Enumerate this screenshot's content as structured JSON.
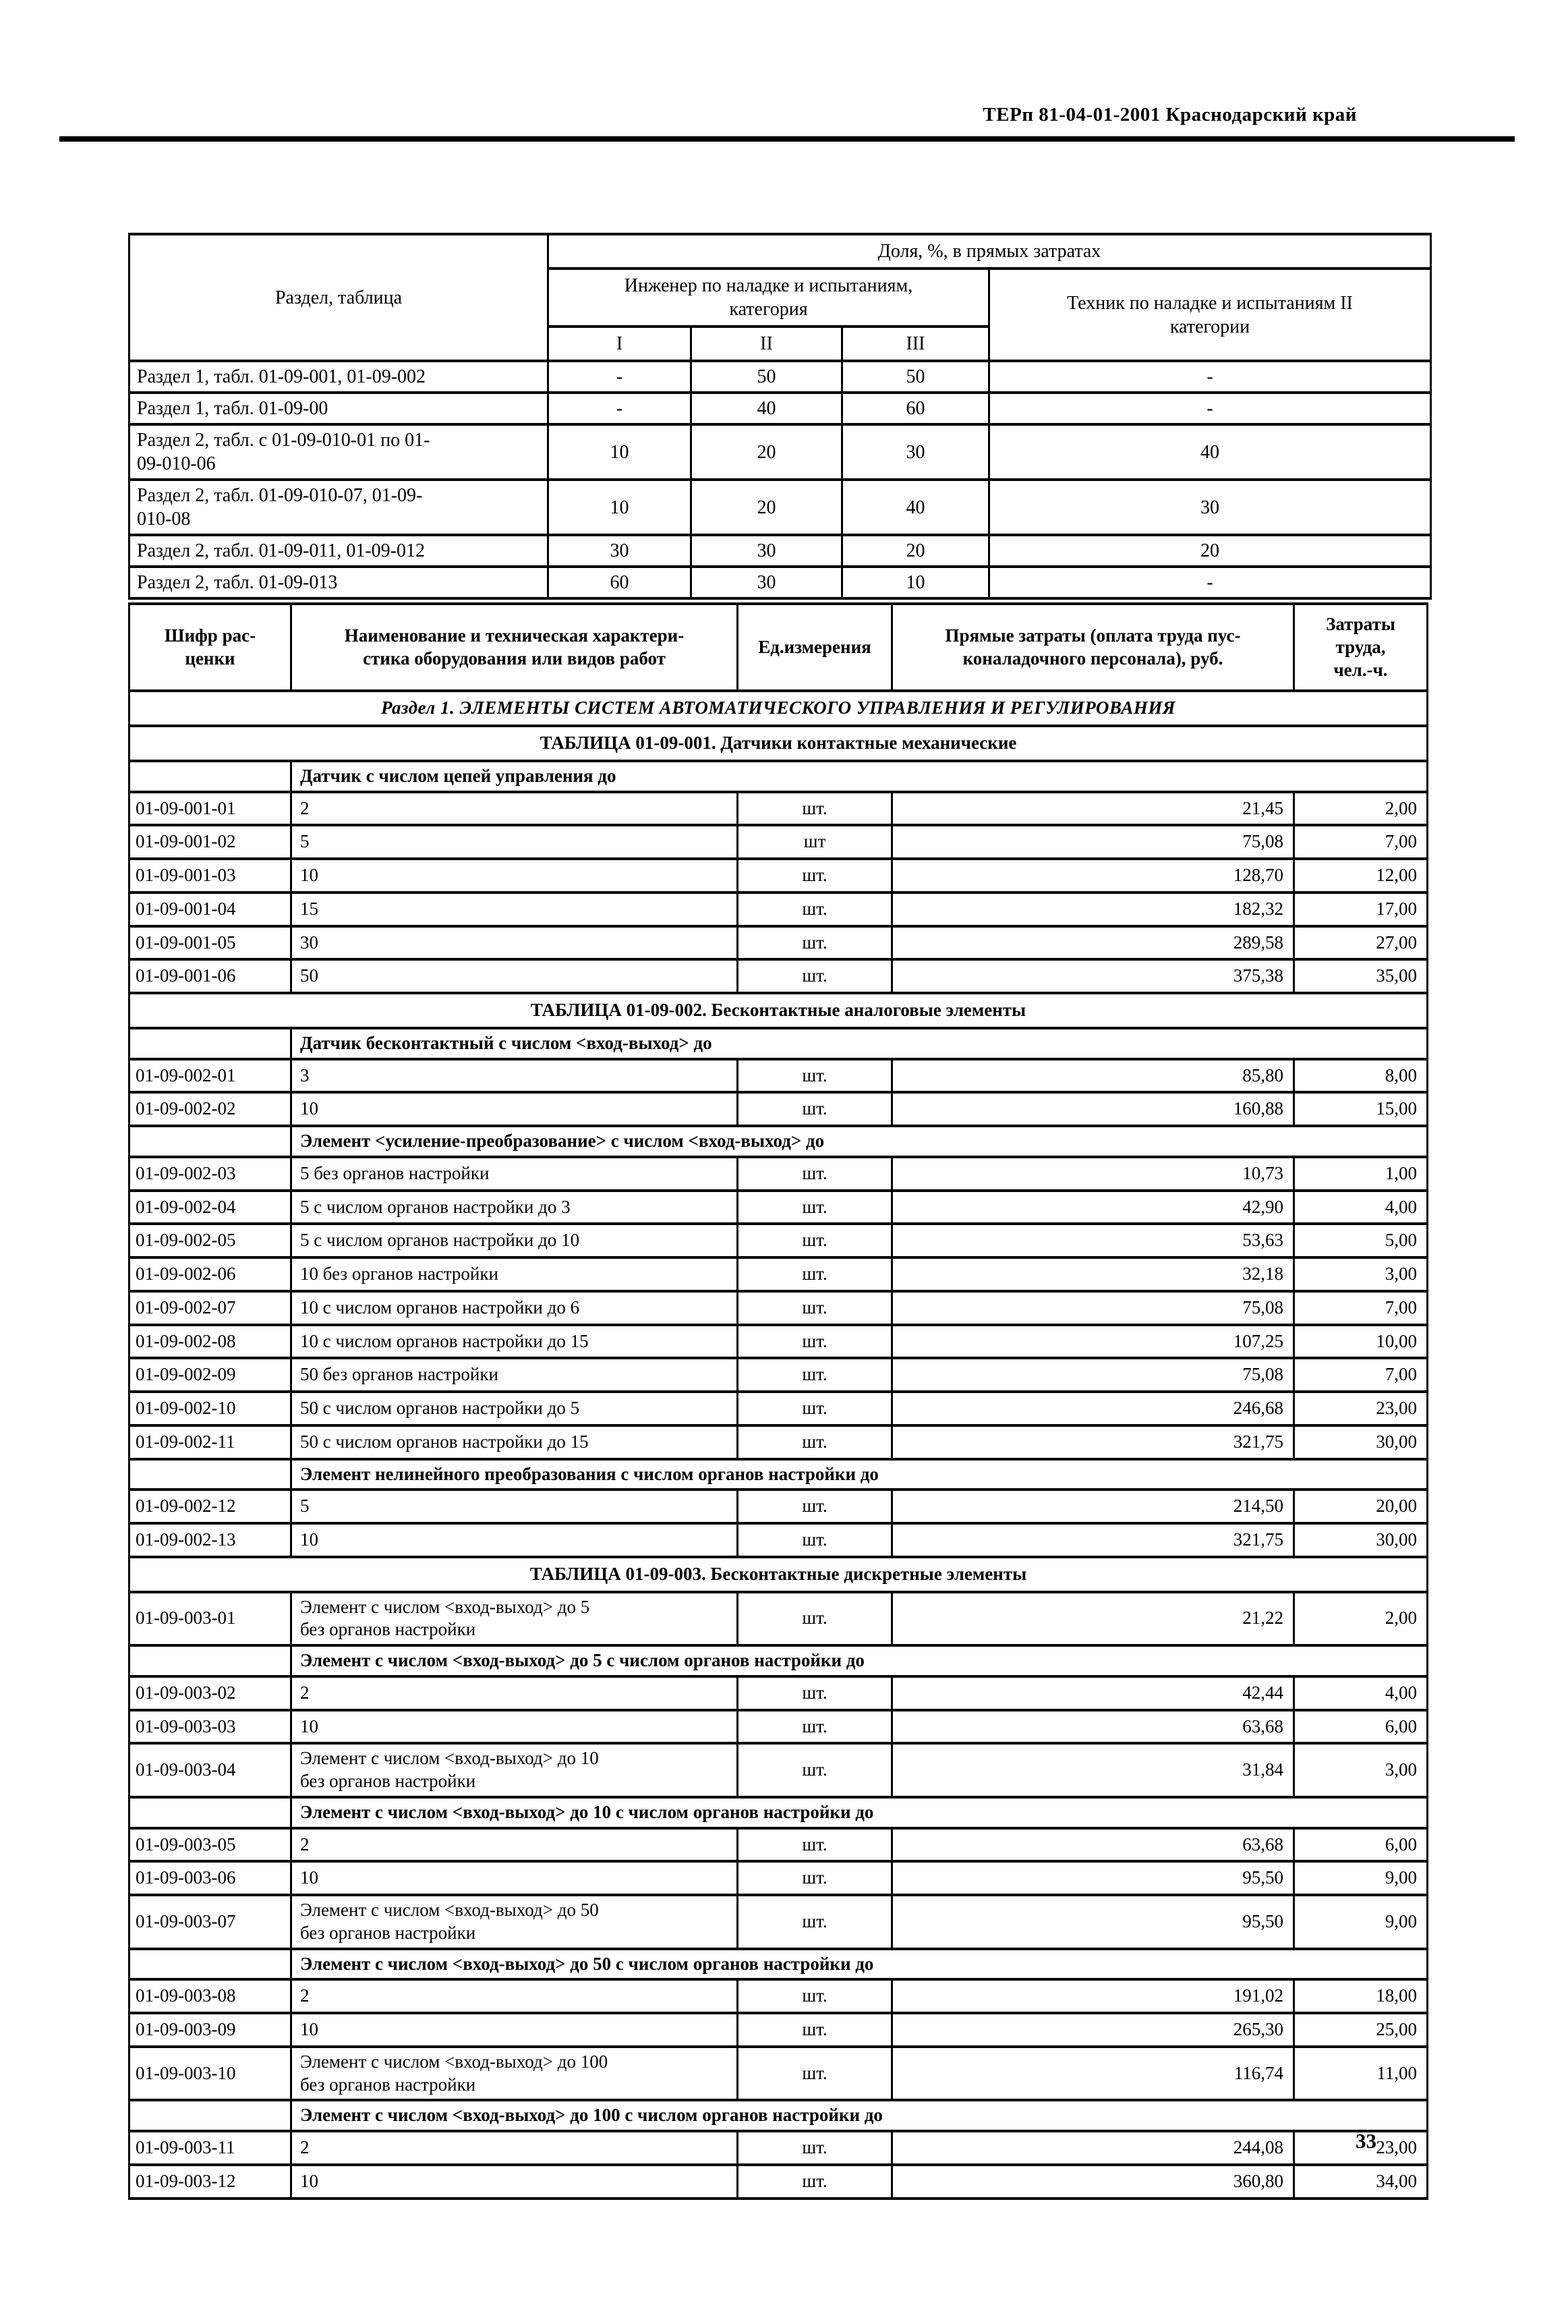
{
  "doc": {
    "header": "ТЕРп 81-04-01-2001  Краснодарский край",
    "page_number": "33",
    "ink_color": "#000000",
    "paper_color": "#ffffff"
  },
  "share_table": {
    "col_header": "Раздел, таблица",
    "span_header": "Доля, %, в прямых затратах",
    "engineer_header": "Инженер по наладке и испытаниям,\nкатегория",
    "tech_header": "Техник по наладке и испытаниям II\nкатегории",
    "categories": [
      "I",
      "II",
      "III"
    ],
    "rows": [
      {
        "label": "Раздел 1, табл. 01-09-001, 01-09-002",
        "c1": "-",
        "c2": "50",
        "c3": "50",
        "tech": "-"
      },
      {
        "label": "Раздел 1, табл. 01-09-00",
        "c1": "-",
        "c2": "40",
        "c3": "60",
        "tech": "-"
      },
      {
        "label": "Раздел 2, табл. с 01-09-010-01 по 01-\n09-010-06",
        "c1": "10",
        "c2": "20",
        "c3": "30",
        "tech": "40"
      },
      {
        "label": "Раздел 2, табл. 01-09-010-07, 01-09-\n010-08",
        "c1": "10",
        "c2": "20",
        "c3": "40",
        "tech": "30"
      },
      {
        "label": "Раздел 2, табл. 01-09-011, 01-09-012",
        "c1": "30",
        "c2": "30",
        "c3": "20",
        "tech": "20"
      },
      {
        "label": "Раздел 2, табл. 01-09-013",
        "c1": "60",
        "c2": "30",
        "c3": "10",
        "tech": "-"
      }
    ]
  },
  "price_table": {
    "headers": [
      "Шифр рас-\nценки",
      "Наименование и техническая характери-\nстика оборудования или видов работ",
      "Ед.измерения",
      "Прямые затраты (оплата труда пус-\nконаладочного персонала), руб.",
      "Затраты\nтруда,\nчел.-ч."
    ],
    "rows": [
      {
        "type": "section",
        "text": "Раздел 1. ЭЛЕМЕНТЫ СИСТЕМ АВТОМАТИЧЕСКОГО УПРАВЛЕНИЯ И РЕГУЛИРОВАНИЯ"
      },
      {
        "type": "title",
        "text": "ТАБЛИЦА 01-09-001. Датчики контактные механические"
      },
      {
        "type": "subheader",
        "text": "Датчик с числом цепей управления до"
      },
      {
        "type": "data",
        "code": "01-09-001-01",
        "name": "2",
        "unit": "шт.",
        "direct": "21,45",
        "labor": "2,00"
      },
      {
        "type": "data",
        "code": "01-09-001-02",
        "name": "5",
        "unit": "шт",
        "direct": "75,08",
        "labor": "7,00"
      },
      {
        "type": "data",
        "code": "01-09-001-03",
        "name": "10",
        "unit": "шт.",
        "direct": "128,70",
        "labor": "12,00"
      },
      {
        "type": "data",
        "code": "01-09-001-04",
        "name": "15",
        "unit": "шт.",
        "direct": "182,32",
        "labor": "17,00"
      },
      {
        "type": "data",
        "code": "01-09-001-05",
        "name": "30",
        "unit": "шт.",
        "direct": "289,58",
        "labor": "27,00"
      },
      {
        "type": "data",
        "code": "01-09-001-06",
        "name": "50",
        "unit": "шт.",
        "direct": "375,38",
        "labor": "35,00"
      },
      {
        "type": "title",
        "text": "ТАБЛИЦА 01-09-002. Бесконтактные аналоговые элементы"
      },
      {
        "type": "subheader",
        "text": "Датчик бесконтактный с числом <вход-выход> до"
      },
      {
        "type": "data",
        "code": "01-09-002-01",
        "name": "3",
        "unit": "шт.",
        "direct": "85,80",
        "labor": "8,00"
      },
      {
        "type": "data",
        "code": "01-09-002-02",
        "name": "10",
        "unit": "шт.",
        "direct": "160,88",
        "labor": "15,00"
      },
      {
        "type": "subheader",
        "text": "Элемент <усиление-преобразование> с числом <вход-выход> до"
      },
      {
        "type": "data",
        "code": "01-09-002-03",
        "name": "5 без органов настройки",
        "unit": "шт.",
        "direct": "10,73",
        "labor": "1,00"
      },
      {
        "type": "data",
        "code": "01-09-002-04",
        "name": "5 с числом органов настройки до 3",
        "unit": "шт.",
        "direct": "42,90",
        "labor": "4,00"
      },
      {
        "type": "data",
        "code": "01-09-002-05",
        "name": "5 с числом органов настройки до 10",
        "unit": "шт.",
        "direct": "53,63",
        "labor": "5,00"
      },
      {
        "type": "data",
        "code": "01-09-002-06",
        "name": "10 без органов настройки",
        "unit": "шт.",
        "direct": "32,18",
        "labor": "3,00"
      },
      {
        "type": "data",
        "code": "01-09-002-07",
        "name": "10 с числом органов настройки до 6",
        "unit": "шт.",
        "direct": "75,08",
        "labor": "7,00"
      },
      {
        "type": "data",
        "code": "01-09-002-08",
        "name": "10 с числом органов настройки до 15",
        "unit": "шт.",
        "direct": "107,25",
        "labor": "10,00"
      },
      {
        "type": "data",
        "code": "01-09-002-09",
        "name": "50 без органов настройки",
        "unit": "шт.",
        "direct": "75,08",
        "labor": "7,00"
      },
      {
        "type": "data",
        "code": "01-09-002-10",
        "name": "50 с числом органов настройки до 5",
        "unit": "шт.",
        "direct": "246,68",
        "labor": "23,00"
      },
      {
        "type": "data",
        "code": "01-09-002-11",
        "name": "50 с числом органов настройки до 15",
        "unit": "шт.",
        "direct": "321,75",
        "labor": "30,00"
      },
      {
        "type": "subheader",
        "text": "Элемент нелинейного преобразования с числом органов настройки до"
      },
      {
        "type": "data",
        "code": "01-09-002-12",
        "name": "5",
        "unit": "шт.",
        "direct": "214,50",
        "labor": "20,00"
      },
      {
        "type": "data",
        "code": "01-09-002-13",
        "name": "10",
        "unit": "шт.",
        "direct": "321,75",
        "labor": "30,00"
      },
      {
        "type": "title",
        "text": "ТАБЛИЦА 01-09-003. Бесконтактные дискретные элементы"
      },
      {
        "type": "data",
        "code": "01-09-003-01",
        "name": "Элемент с числом <вход-выход> до 5\nбез органов настройки",
        "unit": "шт.",
        "direct": "21,22",
        "labor": "2,00"
      },
      {
        "type": "subheader",
        "text": "Элемент с числом <вход-выход> до 5 с числом органов настройки до"
      },
      {
        "type": "data",
        "code": "01-09-003-02",
        "name": "2",
        "unit": "шт.",
        "direct": "42,44",
        "labor": "4,00"
      },
      {
        "type": "data",
        "code": "01-09-003-03",
        "name": "10",
        "unit": "шт.",
        "direct": "63,68",
        "labor": "6,00"
      },
      {
        "type": "data",
        "code": "01-09-003-04",
        "name": "Элемент с числом <вход-выход> до 10\nбез органов настройки",
        "unit": "шт.",
        "direct": "31,84",
        "labor": "3,00"
      },
      {
        "type": "subheader",
        "text": "Элемент с числом <вход-выход> до 10 с числом органов настройки до"
      },
      {
        "type": "data",
        "code": "01-09-003-05",
        "name": "2",
        "unit": "шт.",
        "direct": "63,68",
        "labor": "6,00"
      },
      {
        "type": "data",
        "code": "01-09-003-06",
        "name": "10",
        "unit": "шт.",
        "direct": "95,50",
        "labor": "9,00"
      },
      {
        "type": "data",
        "code": "01-09-003-07",
        "name": "Элемент с числом <вход-выход> до 50\nбез органов настройки",
        "unit": "шт.",
        "direct": "95,50",
        "labor": "9,00"
      },
      {
        "type": "subheader",
        "text": "Элемент с числом <вход-выход> до 50 с числом органов настройки до"
      },
      {
        "type": "data",
        "code": "01-09-003-08",
        "name": "2",
        "unit": "шт.",
        "direct": "191,02",
        "labor": "18,00"
      },
      {
        "type": "data",
        "code": "01-09-003-09",
        "name": "10",
        "unit": "шт.",
        "direct": "265,30",
        "labor": "25,00"
      },
      {
        "type": "data",
        "code": "01-09-003-10",
        "name": "Элемент с числом <вход-выход> до 100\nбез органов настройки",
        "unit": "шт.",
        "direct": "116,74",
        "labor": "11,00"
      },
      {
        "type": "subheader",
        "text": "Элемент с числом <вход-выход> до 100 с числом органов настройки до"
      },
      {
        "type": "data",
        "code": "01-09-003-11",
        "name": "2",
        "unit": "шт.",
        "direct": "244,08",
        "labor": "23,00"
      },
      {
        "type": "data",
        "code": "01-09-003-12",
        "name": "10",
        "unit": "шт.",
        "direct": "360,80",
        "labor": "34,00"
      }
    ]
  }
}
